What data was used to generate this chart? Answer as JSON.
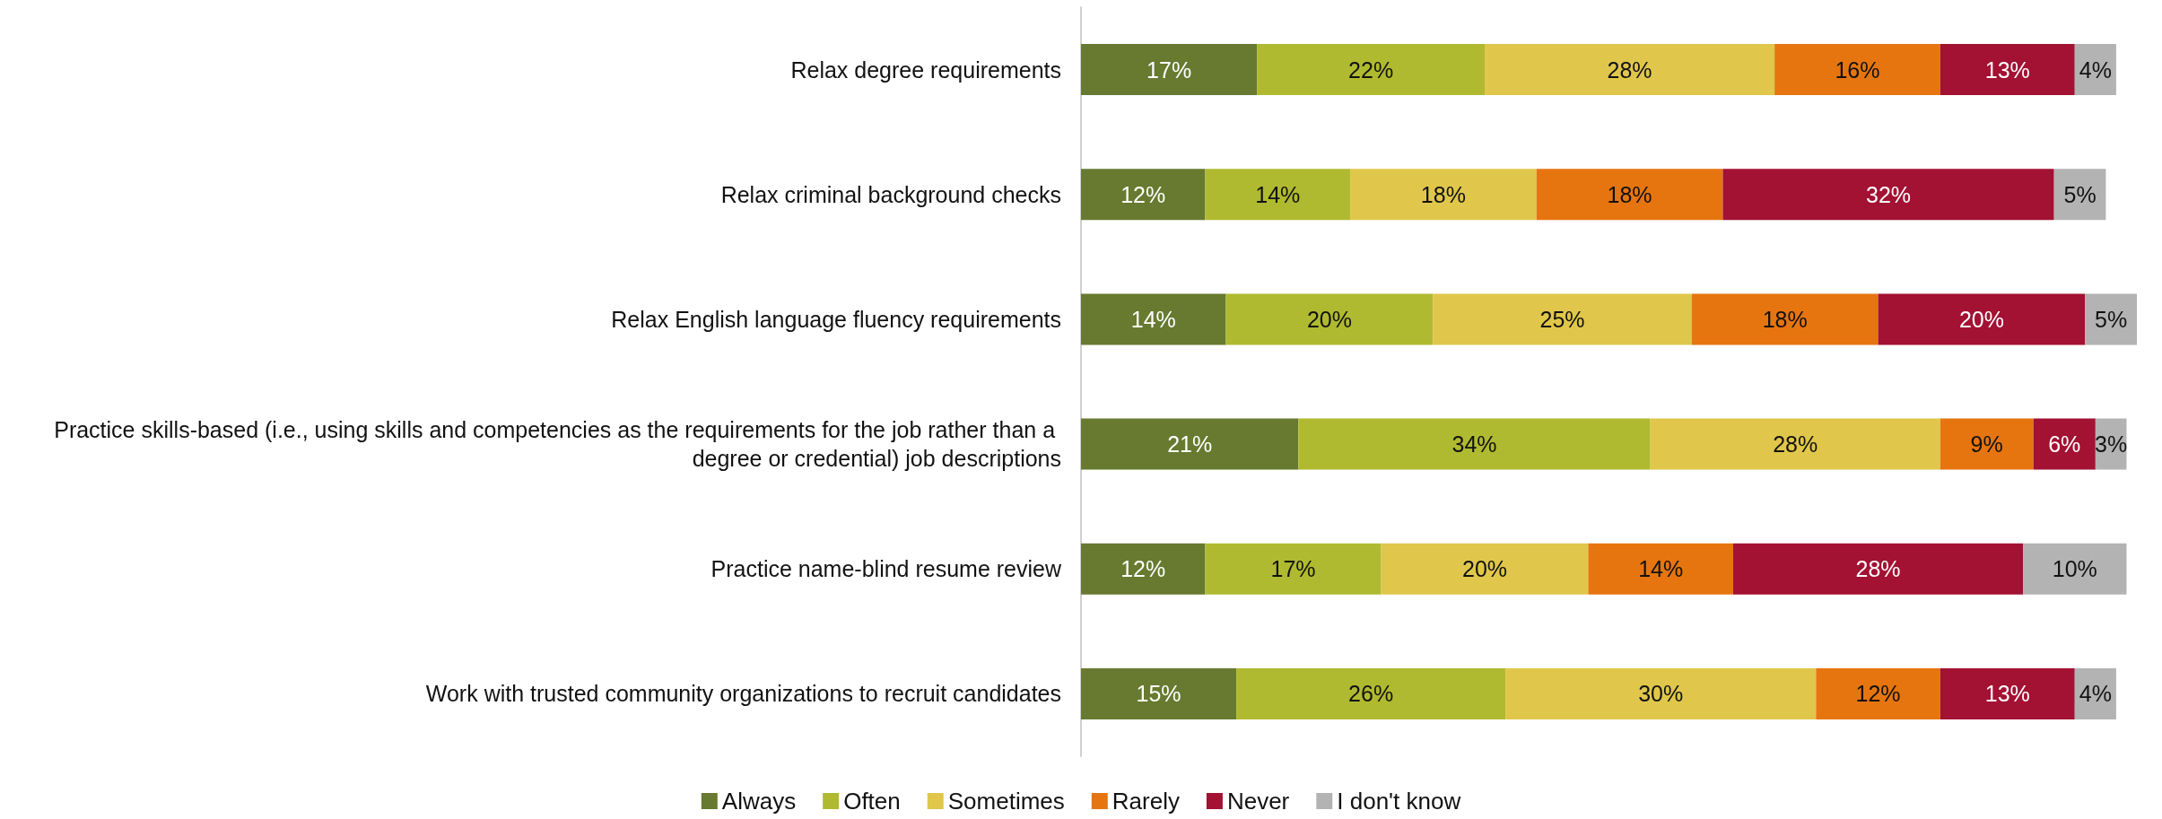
{
  "chart_data": {
    "type": "bar",
    "orientation": "horizontal",
    "stacked": true,
    "legend": "bottom",
    "categories": [
      "Relax degree requirements",
      "Relax criminal background checks",
      "Relax English language fluency requirements",
      "Practice skills-based (i.e., using skills and competencies as the requirements for the job rather than a degree or credential) job descriptions",
      "Practice name-blind resume review",
      "Work with trusted community organizations to recruit candidates"
    ],
    "series": [
      {
        "name": "Always",
        "color": "#677a30",
        "values": [
          17,
          12,
          14,
          21,
          12,
          15
        ],
        "value_labels": [
          "17%",
          "12%",
          "14%",
          "21%",
          "12%",
          "15%"
        ]
      },
      {
        "name": "Often",
        "color": "#b0ba30",
        "values": [
          22,
          14,
          20,
          34,
          17,
          26
        ],
        "value_labels": [
          "22%",
          "14%",
          "20%",
          "34%",
          "17%",
          "26%"
        ]
      },
      {
        "name": "Sometimes",
        "color": "#e0c74b",
        "values": [
          28,
          18,
          25,
          28,
          20,
          30
        ],
        "value_labels": [
          "28%",
          "18%",
          "25%",
          "28%",
          "20%",
          "30%"
        ]
      },
      {
        "name": "Rarely",
        "color": "#e6750f",
        "values": [
          16,
          18,
          18,
          9,
          14,
          12
        ],
        "value_labels": [
          "16%",
          "18%",
          "18%",
          "9%",
          "14%",
          "12%"
        ]
      },
      {
        "name": "Never",
        "color": "#a31133",
        "values": [
          13,
          32,
          20,
          6,
          28,
          13
        ],
        "value_labels": [
          "13%",
          "32%",
          "20%",
          "6%",
          "28%",
          "13%"
        ]
      },
      {
        "name": "I don't know",
        "color": "#b3b3b3",
        "values": [
          4,
          5,
          5,
          3,
          10,
          4
        ],
        "value_labels": [
          "4%",
          "5%",
          "5%",
          "3%",
          "10%",
          "4%"
        ]
      }
    ]
  }
}
